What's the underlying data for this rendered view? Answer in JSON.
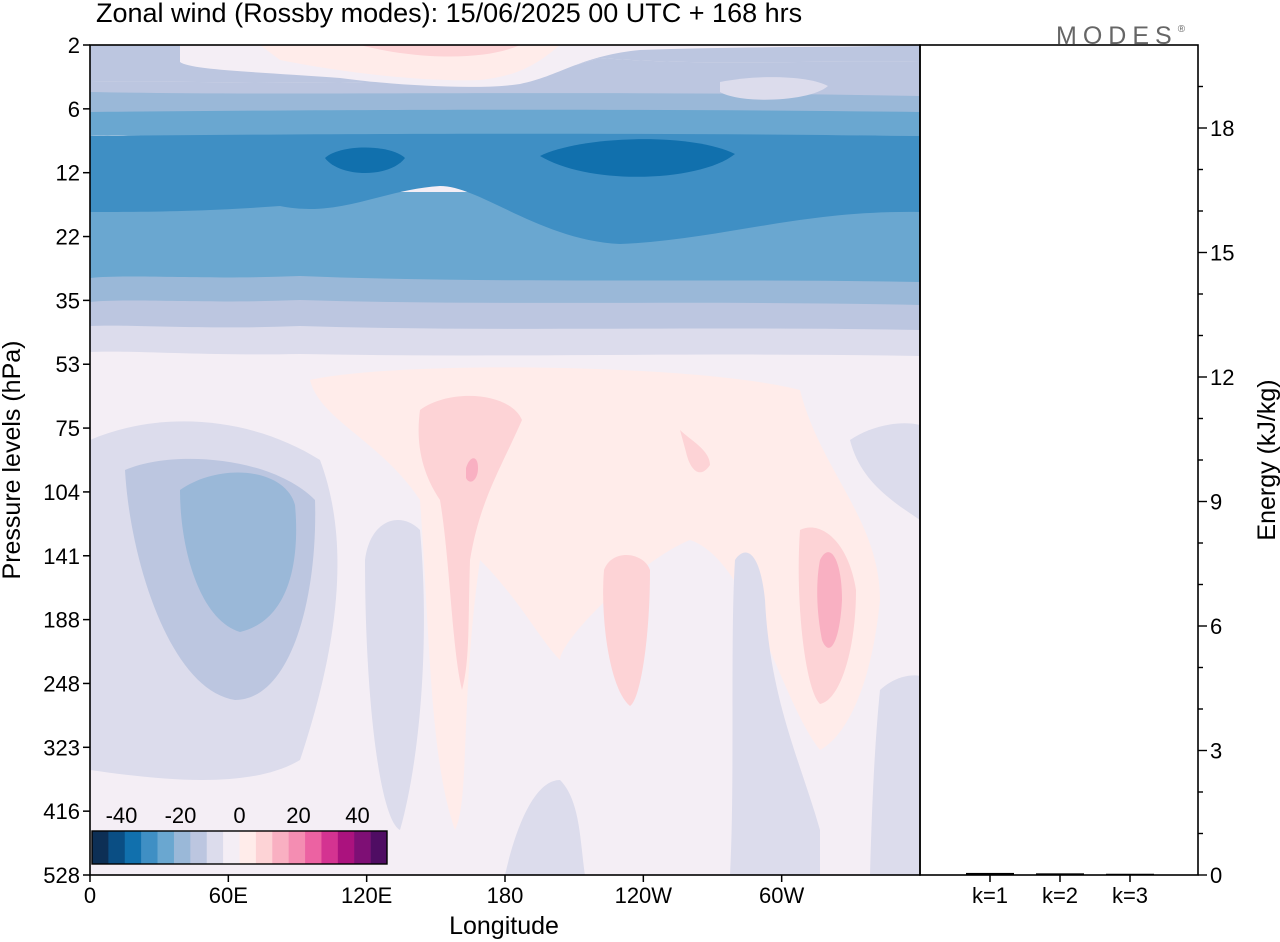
{
  "chart_data": [
    {
      "type": "heatmap",
      "title": "Zonal wind (Rossby modes):  15/06/2025  00 UTC  + 168 hrs",
      "xlabel": "Longitude",
      "ylabel": "Pressure levels (hPa)",
      "x_ticks": [
        "0",
        "60E",
        "120E",
        "180",
        "120W",
        "60W"
      ],
      "x_tick_degrees_east": [
        0,
        60,
        120,
        180,
        240,
        300
      ],
      "x_range_degrees_east": [
        0,
        360
      ],
      "y_ticks": [
        "2",
        "6",
        "12",
        "22",
        "35",
        "53",
        "75",
        "104",
        "141",
        "188",
        "248",
        "323",
        "416",
        "528"
      ],
      "colorbar": {
        "tick_labels": [
          "-40",
          "-20",
          "0",
          "20",
          "40"
        ],
        "tick_values": [
          -40,
          -20,
          0,
          20,
          40
        ],
        "range": [
          -50,
          50
        ],
        "colors": [
          "#0d2f55",
          "#0a4e84",
          "#1170ad",
          "#3f8fc4",
          "#6aa7d0",
          "#9ab8d8",
          "#bcc6e0",
          "#dcdcec",
          "#f4eef5",
          "#ffecea",
          "#fdd3d6",
          "#f9b0c2",
          "#f48db2",
          "#ec62a2",
          "#d43391",
          "#ab127e",
          "#7e0f75",
          "#4f0d63"
        ]
      },
      "fields": [
        {
          "level": "12-22",
          "longitudes": "0-360",
          "value_range": [
            -35,
            -25
          ]
        },
        {
          "level": "10-14",
          "longitudes": "90-135",
          "value_range": [
            -40,
            -35
          ]
        },
        {
          "level": "10-14",
          "longitudes": "200-280",
          "value_range": [
            -40,
            -35
          ]
        },
        {
          "level": "100-200",
          "longitudes": "30-90",
          "value_range": [
            -20,
            -15
          ]
        },
        {
          "level": "2-4",
          "longitudes": "120-180",
          "value_range": [
            5,
            10
          ]
        },
        {
          "level": "140-200",
          "longitudes": "315-330",
          "value_range": [
            10,
            15
          ]
        }
      ],
      "grid": false
    },
    {
      "type": "bar",
      "ylabel": "Energy (kJ/kg)",
      "categories": [
        "k=1",
        "k=2",
        "k=3"
      ],
      "values": [
        0.05,
        0.04,
        0.03
      ],
      "ylim": [
        0,
        20
      ],
      "y_ticks": [
        0,
        3,
        6,
        9,
        12,
        15,
        18
      ]
    }
  ],
  "brand": "MODES",
  "brand_mark": "®"
}
